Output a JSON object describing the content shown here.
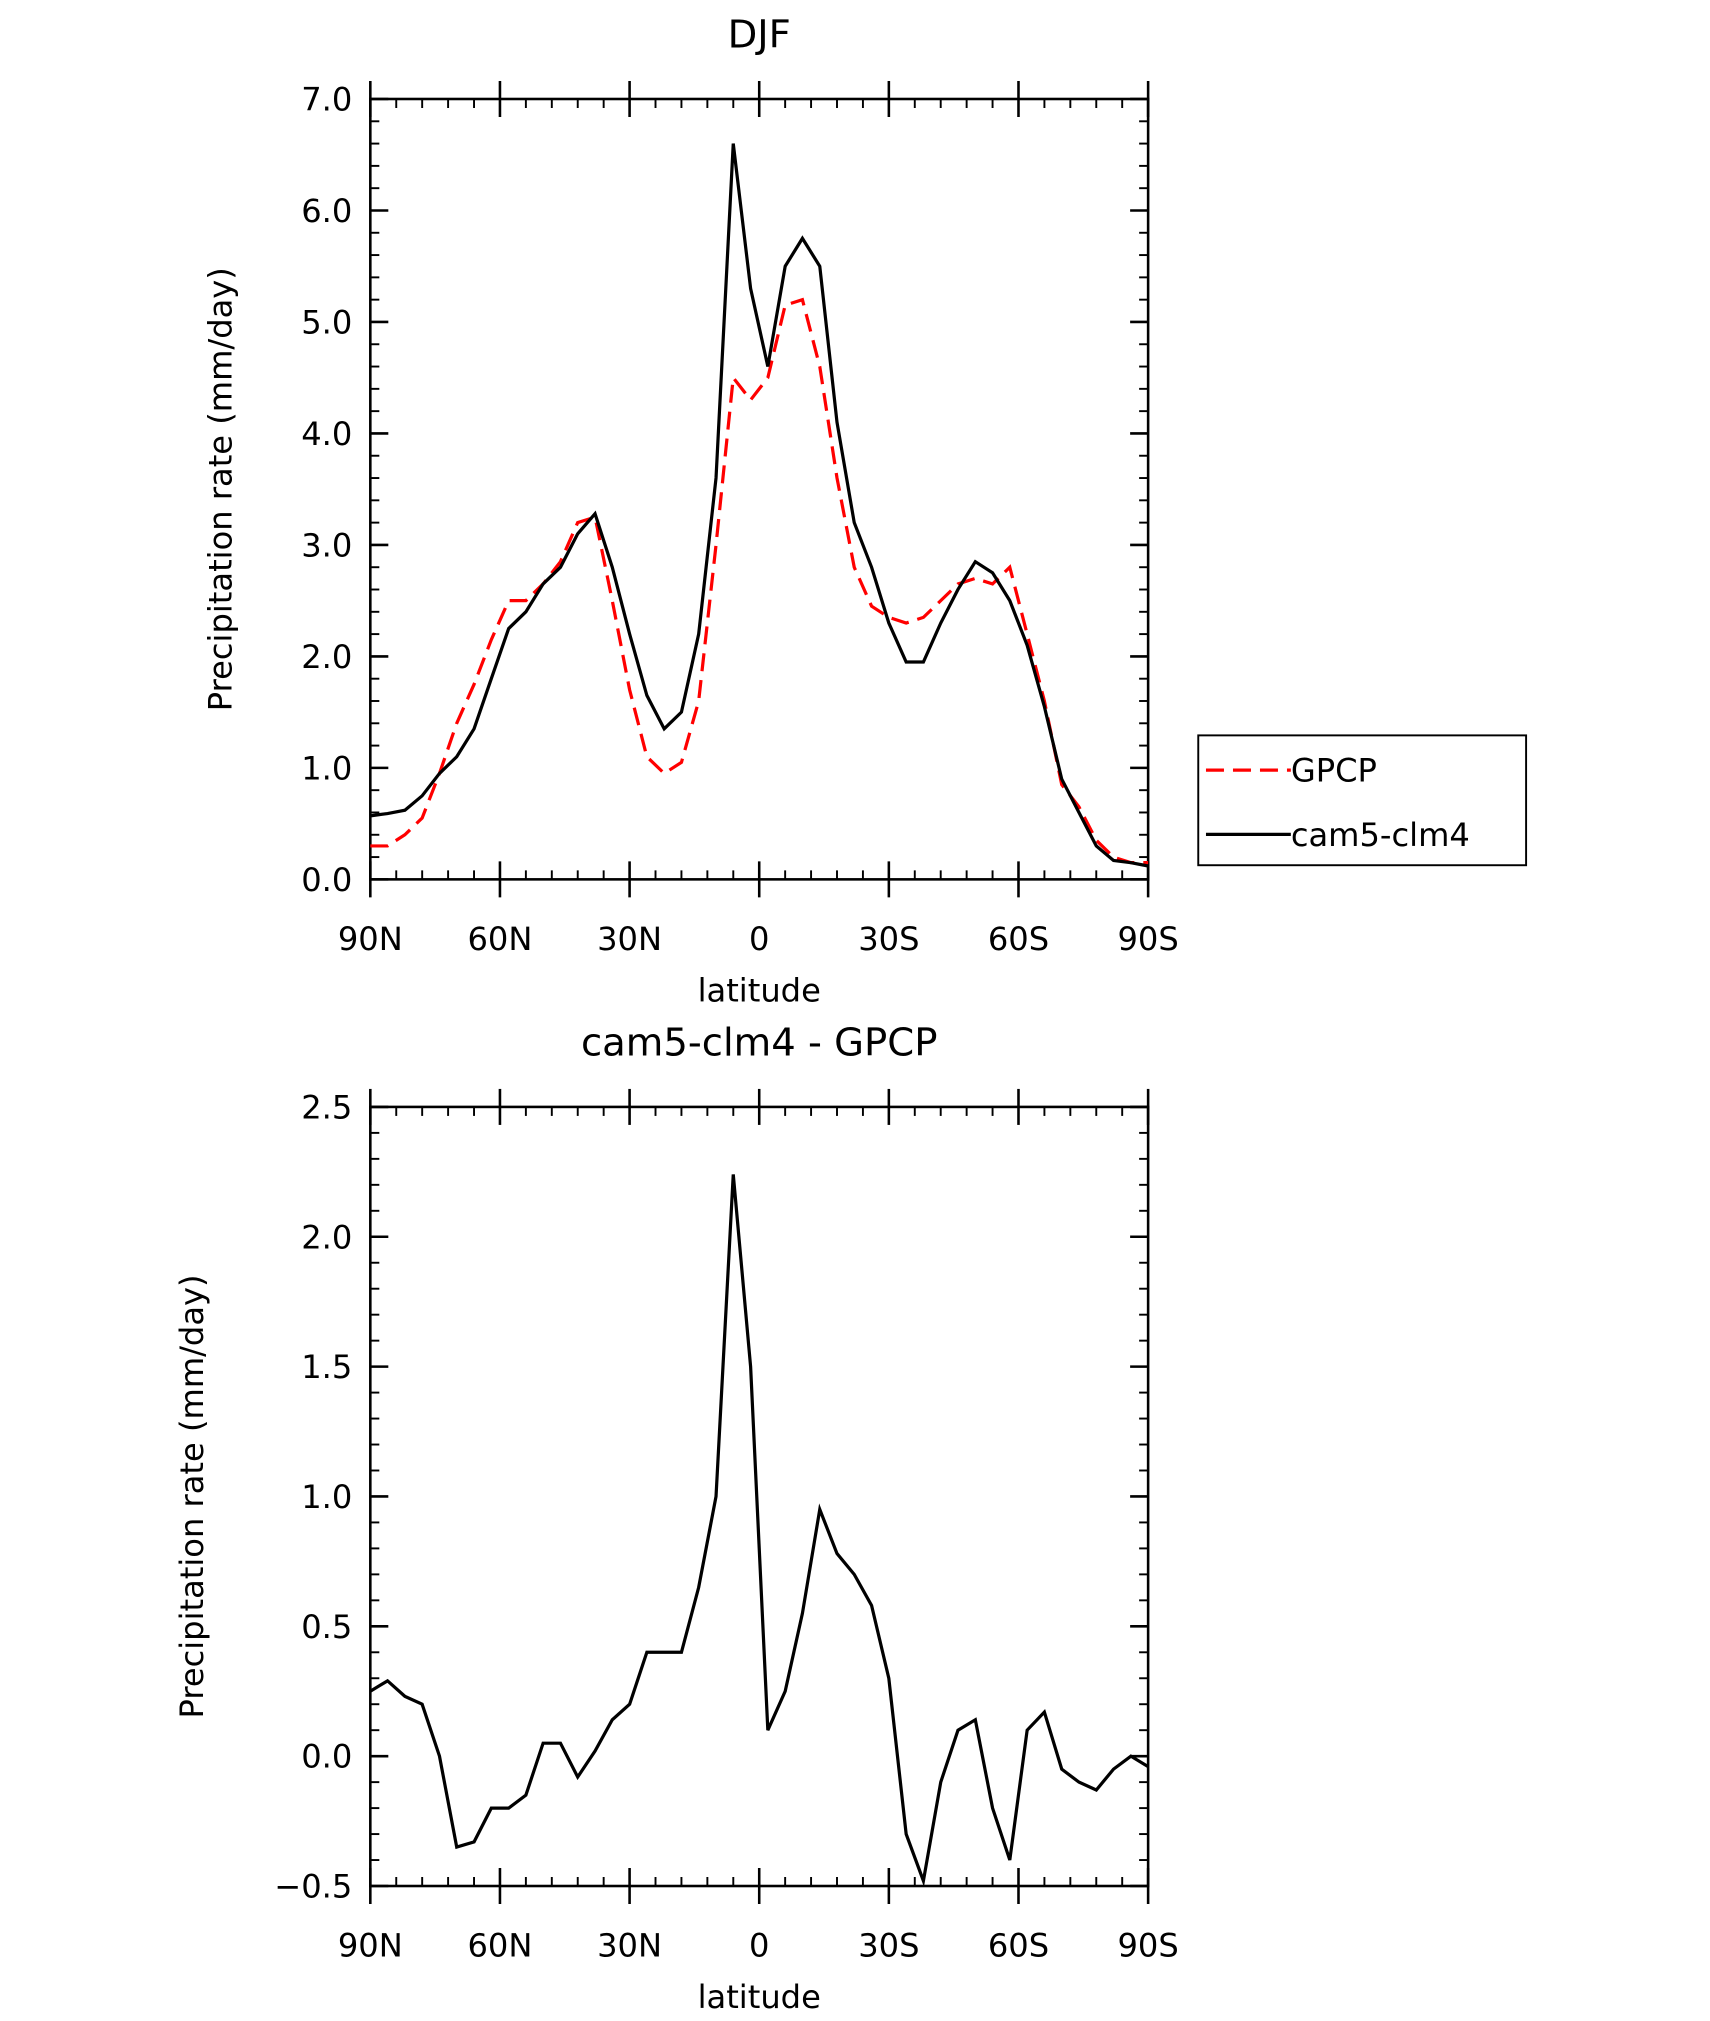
{
  "chart_data": [
    {
      "type": "line",
      "title": "DJF",
      "xlabel": "latitude",
      "ylabel": "Precipitation rate (mm/day)",
      "x": [
        90,
        86,
        82,
        78,
        74,
        70,
        66,
        62,
        58,
        54,
        50,
        46,
        42,
        38,
        34,
        30,
        26,
        22,
        18,
        14,
        10,
        6,
        2,
        -2,
        -6,
        -10,
        -14,
        -18,
        -22,
        -26,
        -30,
        -34,
        -38,
        -42,
        -46,
        -50,
        -54,
        -58,
        -62,
        -66,
        -70,
        -74,
        -78,
        -82,
        -86,
        -90
      ],
      "series": [
        {
          "name": "GPCP",
          "color": "#ff0000",
          "style": "dashed",
          "values": [
            0.3,
            0.3,
            0.4,
            0.55,
            0.95,
            1.4,
            1.75,
            2.15,
            2.5,
            2.5,
            2.65,
            2.85,
            3.2,
            3.25,
            2.5,
            1.7,
            1.1,
            0.95,
            1.05,
            1.6,
            3.0,
            4.5,
            4.3,
            4.5,
            5.15,
            5.2,
            4.6,
            3.6,
            2.8,
            2.45,
            2.35,
            2.3,
            2.35,
            2.5,
            2.65,
            2.7,
            2.65,
            2.8,
            2.2,
            1.6,
            0.85,
            0.65,
            0.35,
            0.2,
            0.15,
            0.15
          ]
        },
        {
          "name": "cam5-clm4",
          "color": "#000000",
          "style": "solid",
          "values": [
            0.57,
            0.59,
            0.62,
            0.75,
            0.95,
            1.1,
            1.35,
            1.8,
            2.25,
            2.4,
            2.65,
            2.8,
            3.1,
            3.28,
            2.8,
            2.2,
            1.65,
            1.35,
            1.5,
            2.2,
            3.6,
            6.6,
            5.3,
            4.6,
            5.5,
            5.75,
            5.5,
            4.1,
            3.2,
            2.8,
            2.3,
            1.95,
            1.95,
            2.3,
            2.6,
            2.85,
            2.75,
            2.5,
            2.1,
            1.55,
            0.9,
            0.6,
            0.3,
            0.17,
            0.15,
            0.12
          ]
        }
      ],
      "xlim": [
        90,
        -90
      ],
      "xticks": [
        {
          "value": 90,
          "label": "90N"
        },
        {
          "value": 60,
          "label": "60N"
        },
        {
          "value": 30,
          "label": "30N"
        },
        0,
        {
          "value": -30,
          "label": "30S"
        },
        {
          "value": -60,
          "label": "60S"
        },
        {
          "value": -90,
          "label": "90S"
        }
      ],
      "ylim": [
        0,
        7
      ],
      "yticks": [
        {
          "value": 0,
          "label": "0.0"
        },
        {
          "value": 1,
          "label": "1.0"
        },
        {
          "value": 2,
          "label": "2.0"
        },
        {
          "value": 3,
          "label": "3.0"
        },
        {
          "value": 4,
          "label": "4.0"
        },
        {
          "value": 5,
          "label": "5.0"
        },
        {
          "value": 6,
          "label": "6.0"
        },
        {
          "value": 7,
          "label": "7.0"
        }
      ],
      "legend": "right"
    },
    {
      "type": "line",
      "title": "cam5-clm4 - GPCP",
      "xlabel": "latitude",
      "ylabel": "Precipitation rate (mm/day)",
      "x": [
        90,
        86,
        82,
        78,
        74,
        70,
        66,
        62,
        58,
        54,
        50,
        46,
        42,
        38,
        34,
        30,
        26,
        22,
        18,
        14,
        10,
        6,
        2,
        -2,
        -6,
        -10,
        -14,
        -18,
        -22,
        -26,
        -30,
        -34,
        -38,
        -42,
        -46,
        -50,
        -54,
        -58,
        -62,
        -66,
        -70,
        -74,
        -78,
        -82,
        -86,
        -90
      ],
      "series": [
        {
          "color": "#000000",
          "style": "solid",
          "values": [
            0.25,
            0.29,
            0.23,
            0.2,
            0.0,
            -0.35,
            -0.33,
            -0.2,
            -0.2,
            -0.15,
            0.05,
            0.05,
            -0.08,
            0.02,
            0.14,
            0.2,
            0.4,
            0.4,
            0.4,
            0.65,
            1.0,
            2.24,
            1.5,
            0.1,
            0.25,
            0.55,
            0.95,
            0.78,
            0.7,
            0.58,
            0.3,
            -0.3,
            -0.48,
            -0.1,
            0.1,
            0.14,
            -0.2,
            -0.4,
            0.1,
            0.17,
            -0.05,
            -0.1,
            -0.13,
            -0.05,
            0.0,
            -0.04
          ]
        }
      ],
      "xlim": [
        90,
        -90
      ],
      "xticks": [
        {
          "value": 90,
          "label": "90N"
        },
        {
          "value": 60,
          "label": "60N"
        },
        {
          "value": 30,
          "label": "30N"
        },
        0,
        {
          "value": -30,
          "label": "30S"
        },
        {
          "value": -60,
          "label": "60S"
        },
        {
          "value": -90,
          "label": "90S"
        }
      ],
      "ylim": [
        -0.5,
        2.5
      ],
      "yticks": [
        {
          "value": -0.5,
          "label": "−0.5"
        },
        {
          "value": 0,
          "label": "0.0"
        },
        0.5,
        {
          "value": 1,
          "label": "1.0"
        },
        1.5,
        {
          "value": 2,
          "label": "2.0"
        },
        2.5
      ]
    }
  ]
}
